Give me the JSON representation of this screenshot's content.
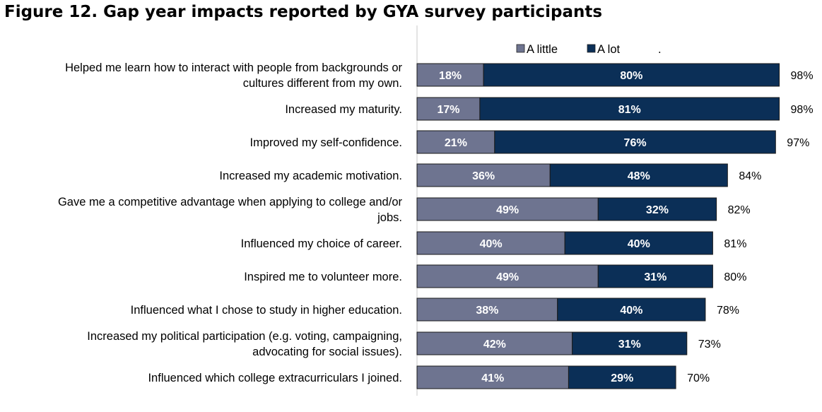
{
  "title": "Figure 12. Gap year impacts reported by GYA survey participants",
  "chart_data": {
    "type": "bar",
    "orientation": "horizontal",
    "stacked": true,
    "title": "Figure 12. Gap year impacts reported by GYA survey participants",
    "xlabel": "",
    "ylabel": "",
    "xlim": [
      0,
      100
    ],
    "legend_position": "top",
    "legend_trailing_text": ".",
    "categories": [
      [
        "Helped me learn how to interact with people from backgrounds or",
        "cultures different from my own."
      ],
      [
        "Increased my maturity."
      ],
      [
        "Improved my self-confidence."
      ],
      [
        "Increased my academic motivation."
      ],
      [
        "Gave me a competitive advantage when applying to college and/or",
        "jobs."
      ],
      [
        "Influenced my choice of career."
      ],
      [
        "Inspired me to volunteer more."
      ],
      [
        "Influenced what I chose to study in higher education."
      ],
      [
        "Increased my political participation (e.g. voting, campaigning,",
        "advocating for social issues)."
      ],
      [
        "Influenced which college extracurriculars I joined."
      ]
    ],
    "series": [
      {
        "name": "A little",
        "color": "#6e7490",
        "values": [
          18,
          17,
          21,
          36,
          49,
          40,
          49,
          38,
          42,
          41
        ]
      },
      {
        "name": "A lot",
        "color": "#0b2f57",
        "values": [
          80,
          81,
          76,
          48,
          32,
          40,
          31,
          40,
          31,
          29
        ]
      }
    ],
    "totals": [
      98,
      98,
      97,
      84,
      82,
      81,
      80,
      78,
      73,
      70
    ],
    "value_suffix": "%"
  }
}
